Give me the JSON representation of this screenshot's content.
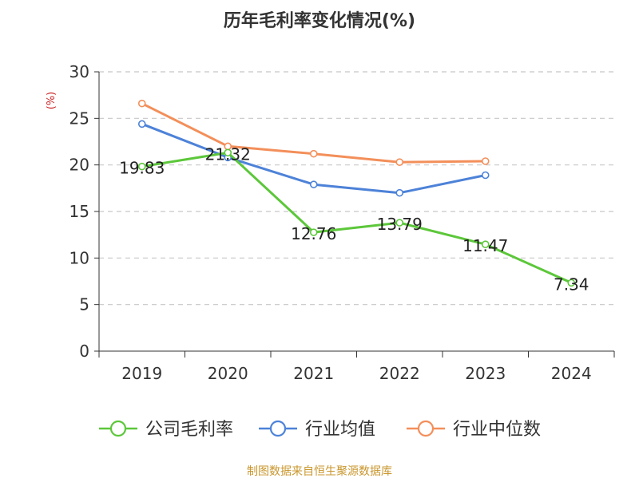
{
  "chart_data": {
    "type": "line",
    "title": "历年毛利率变化情况(%)",
    "ylabel": "(%)",
    "xlabel": "",
    "ylim": [
      0,
      30
    ],
    "yticks": [
      0,
      5,
      10,
      15,
      20,
      25,
      30
    ],
    "categories": [
      "2019",
      "2020",
      "2021",
      "2022",
      "2023",
      "2024"
    ],
    "grid": true,
    "legend_position": "bottom",
    "series": [
      {
        "name": "公司毛利率",
        "color": "#5cc73a",
        "values": [
          19.83,
          21.32,
          12.76,
          13.79,
          11.47,
          7.34
        ],
        "labels": [
          "19.83",
          "21.32",
          "12.76",
          "13.79",
          "11.47",
          "7.34"
        ]
      },
      {
        "name": "行业均值",
        "color": "#4d82d8",
        "values": [
          24.4,
          20.8,
          17.9,
          17.0,
          18.9,
          null
        ]
      },
      {
        "name": "行业中位数",
        "color": "#f38f5a",
        "values": [
          26.6,
          22.0,
          21.2,
          20.3,
          20.4,
          null
        ]
      }
    ]
  },
  "source": "制图数据来自恒生聚源数据库",
  "colors": {
    "title": "#333333",
    "ylabel": "#cc2222",
    "axis": "#333333",
    "grid": "#c8c8c8",
    "source": "#c9962c"
  }
}
